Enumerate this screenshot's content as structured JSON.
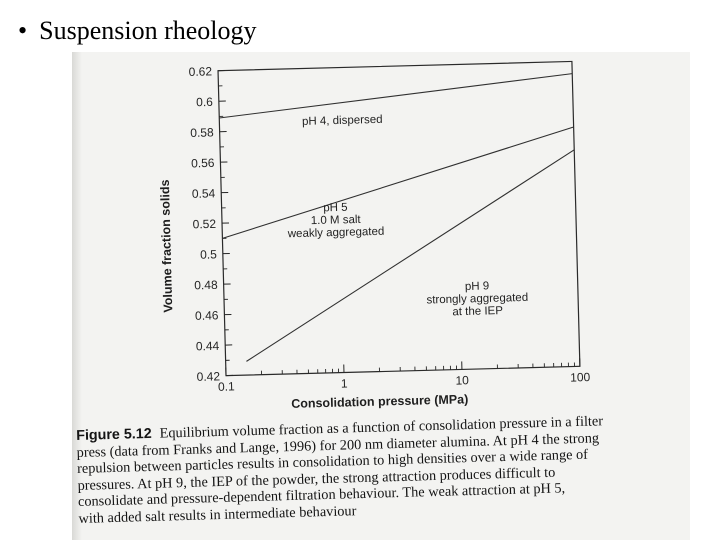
{
  "slide": {
    "bullet": "•",
    "title": "Suspension rheology"
  },
  "figure": {
    "label": "Figure 5.12",
    "caption_lines": [
      "Equilibrium volume fraction as a function of consolidation pressure in a filter",
      "press (data from Franks and Lange, 1996) for 200 nm diameter alumina. At pH 4 the strong",
      "repulsion between particles results in consolidation to high densities over a wide range of",
      "pressures. At pH 9, the IEP of the powder, the strong attraction produces difficult to",
      "consolidate and pressure-dependent filtration behaviour. The weak attraction at pH 5,",
      "with added salt results in intermediate behaviour"
    ]
  },
  "chart_data": {
    "type": "line",
    "xlabel": "Consolidation pressure (MPa)",
    "ylabel": "Volume fraction solids",
    "xscale": "log",
    "xlim": [
      0.1,
      100
    ],
    "ylim": [
      0.42,
      0.62
    ],
    "xticks": [
      "0.1",
      "1",
      "10",
      "100"
    ],
    "yticks": [
      "0.42",
      "0.44",
      "0.46",
      "0.48",
      "0.5",
      "0.52",
      "0.54",
      "0.56",
      "0.58",
      "0.6",
      "0.62"
    ],
    "grid": false,
    "series": [
      {
        "label_lines": [
          "pH 4, dispersed"
        ],
        "x": [
          0.1,
          100
        ],
        "y": [
          0.589,
          0.612
        ]
      },
      {
        "label_lines": [
          "pH 5",
          "1.0 M salt",
          "weakly aggregated"
        ],
        "x": [
          0.1,
          100
        ],
        "y": [
          0.51,
          0.577
        ]
      },
      {
        "label_lines": [
          "pH 9",
          "strongly aggregated",
          "at the IEP"
        ],
        "x": [
          0.15,
          100
        ],
        "y": [
          0.429,
          0.562
        ]
      }
    ]
  }
}
